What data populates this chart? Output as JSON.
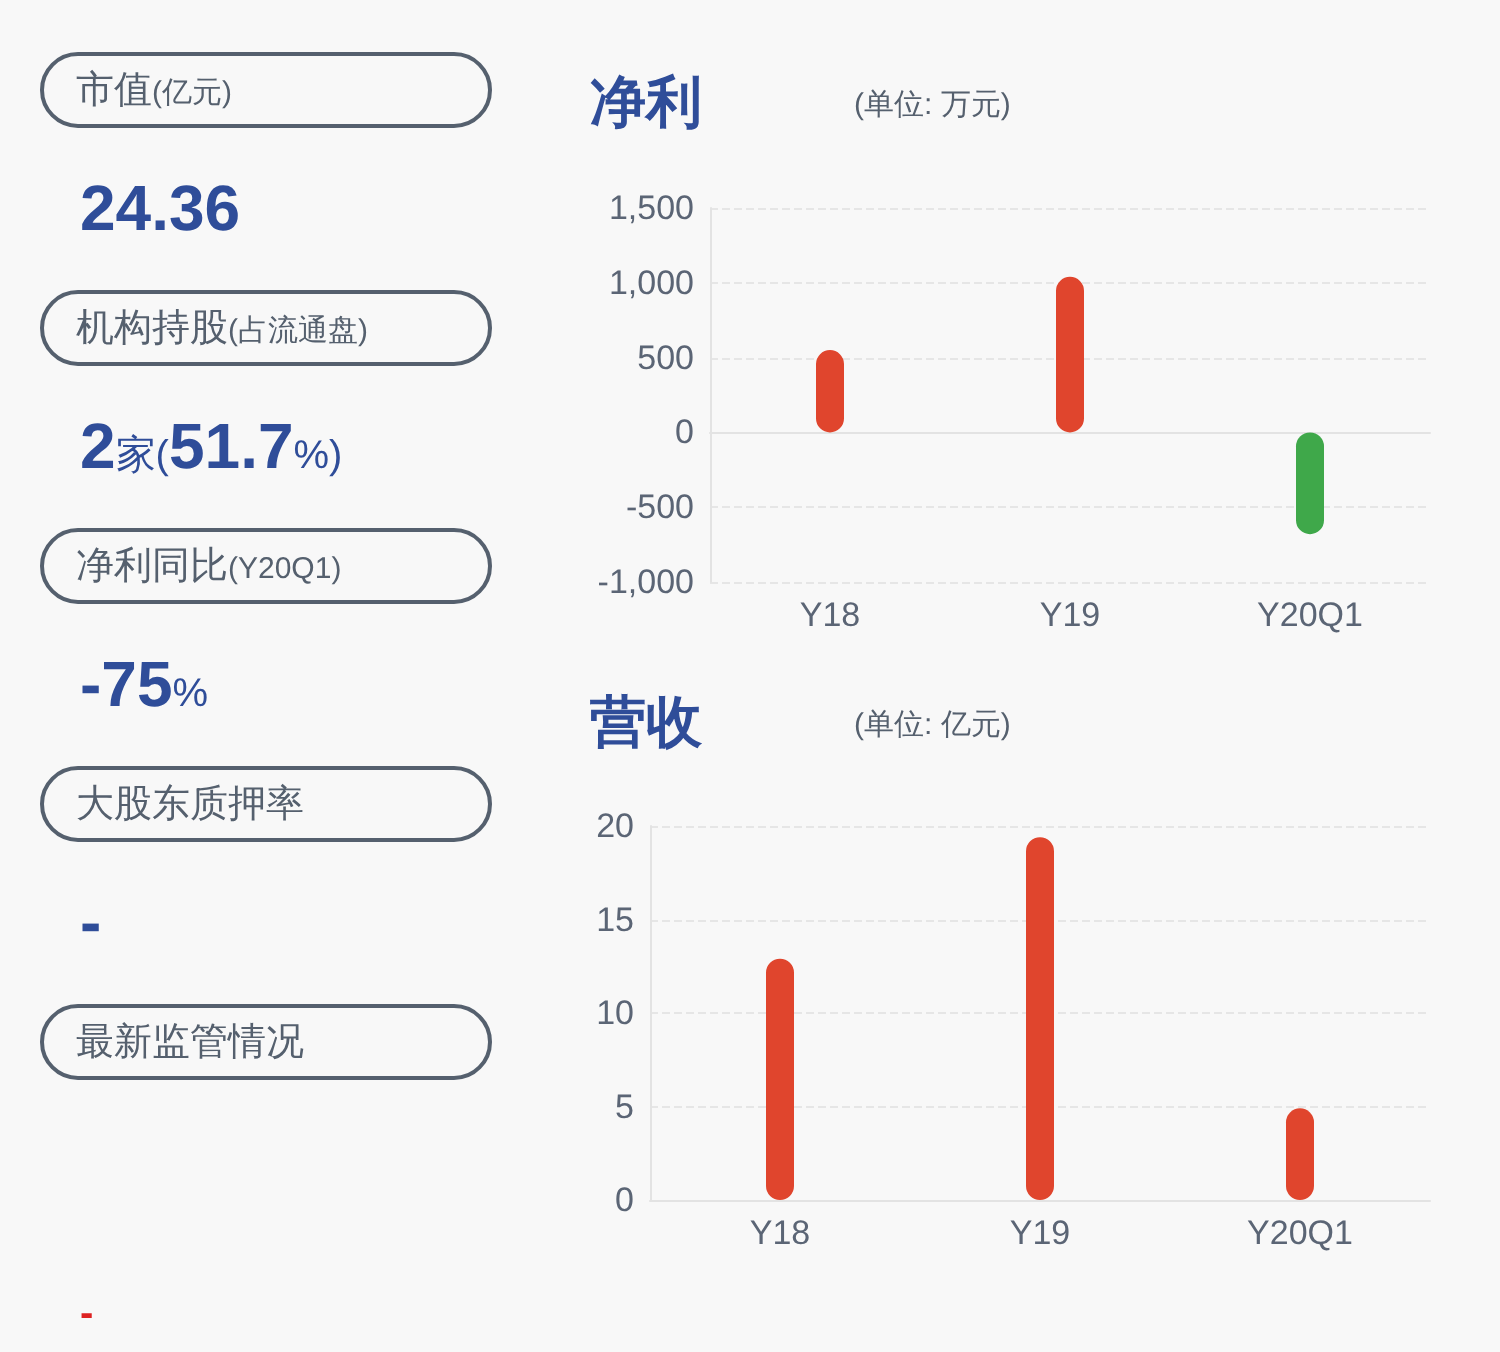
{
  "chart_data": [
    {
      "type": "other",
      "annotations": [
        "市值(亿元)",
        "24.36",
        "机构持股(占流通盘)",
        "2家(51.7%)",
        "净利同比(Y20Q1)",
        "-75%",
        "大股东质押率",
        "-",
        "最新监管情况",
        "-"
      ]
    },
    {
      "type": "bar",
      "title": "净利",
      "subtitle": "(单位: 万元)",
      "categories": [
        "Y18",
        "Y19",
        "Y20Q1"
      ],
      "values": [
        550,
        1040,
        -680
      ],
      "colors": [
        "#e0452d",
        "#e0452d",
        "#3fa84a"
      ],
      "ylim": [
        -1000,
        1500
      ],
      "yticks": [
        {
          "value": -1000,
          "label": "-1,000"
        },
        -500,
        0,
        500,
        {
          "value": 1000,
          "label": "1,000"
        },
        {
          "value": 1500,
          "label": "1,500"
        }
      ],
      "grid": "y"
    },
    {
      "type": "bar",
      "title": "营收",
      "subtitle": "(单位: 亿元)",
      "categories": [
        "Y18",
        "Y19",
        "Y20Q1"
      ],
      "values": [
        12.9,
        19.4,
        4.9
      ],
      "colors": [
        "#e0452d",
        "#e0452d",
        "#e0452d"
      ],
      "ylim": [
        0,
        20
      ],
      "yticks": [
        0,
        5,
        10,
        15,
        20
      ],
      "grid": "y"
    }
  ]
}
